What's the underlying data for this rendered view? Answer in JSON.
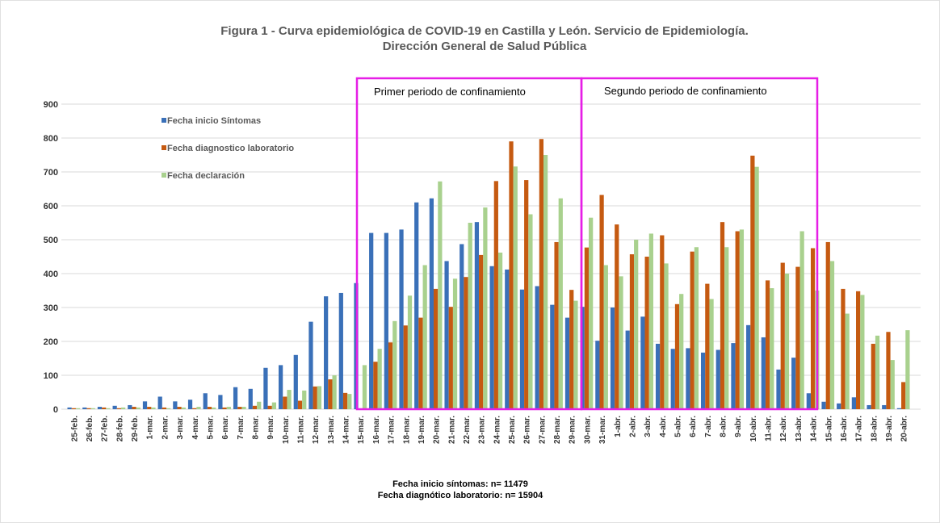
{
  "chart_data": {
    "type": "bar",
    "title": "Figura 1 - Curva epidemiológica de COVID-19 en Castilla y León.  Servicio de Epidemiología.",
    "subtitle": "Dirección General de Salud Pública",
    "annotations": [
      "Primer periodo de confinamiento",
      "Segundo periodo de confinamiento"
    ],
    "notes": [
      "Fecha inicio síntomas: n= 11479",
      "Fecha diagnótico laboratorio: n= 15904"
    ],
    "categories": [
      "25-feb.",
      "26-feb.",
      "27-feb.",
      "28-feb.",
      "29-feb.",
      "1-mar.",
      "2-mar.",
      "3-mar.",
      "4-mar.",
      "5-mar.",
      "6-mar.",
      "7-mar.",
      "8-mar.",
      "9-mar.",
      "10-mar.",
      "11-mar.",
      "12-mar.",
      "13-mar.",
      "14-mar.",
      "15-mar.",
      "16-mar.",
      "17-mar.",
      "18-mar.",
      "19-mar.",
      "20-mar.",
      "21-mar.",
      "22-mar.",
      "23-mar.",
      "24-mar.",
      "25-mar.",
      "26-mar.",
      "27-mar.",
      "28-mar.",
      "29-mar.",
      "30-mar.",
      "31-mar.",
      "1-abr.",
      "2-abr.",
      "3-abr.",
      "4-abr.",
      "5-abr.",
      "6-abr.",
      "7-abr.",
      "8-abr.",
      "9-abr.",
      "10-abr.",
      "11-abr.",
      "12-abr.",
      "13-abr.",
      "14-abr.",
      "15-abr.",
      "16-abr.",
      "17-abr.",
      "18-abr.",
      "19-abr.",
      "20-abr."
    ],
    "series": [
      {
        "name": "Fecha inicio Síntomas",
        "color": "#3a70b8",
        "values": [
          5,
          5,
          7,
          10,
          12,
          23,
          37,
          23,
          28,
          47,
          42,
          65,
          60,
          122,
          130,
          160,
          258,
          333,
          343,
          372,
          520,
          520,
          530,
          610,
          622,
          437,
          487,
          552,
          422,
          412,
          353,
          363,
          308,
          270,
          302,
          202,
          300,
          232,
          273,
          193,
          178,
          180,
          167,
          175,
          195,
          248,
          212,
          117,
          152,
          47,
          22,
          17,
          35,
          12,
          12,
          3
        ]
      },
      {
        "name": "Fecha diagnostico laboratorio",
        "color": "#c55a11",
        "values": [
          3,
          3,
          5,
          3,
          7,
          7,
          5,
          7,
          3,
          7,
          5,
          7,
          10,
          10,
          37,
          25,
          67,
          88,
          48,
          0,
          140,
          197,
          247,
          270,
          355,
          302,
          390,
          455,
          673,
          790,
          676,
          797,
          493,
          352,
          477,
          632,
          545,
          457,
          450,
          513,
          310,
          465,
          370,
          552,
          525,
          748,
          380,
          432,
          420,
          475,
          493,
          355,
          348,
          193,
          228,
          80
        ]
      },
      {
        "name": "Fecha declaración",
        "color": "#a9d18e",
        "values": [
          3,
          3,
          3,
          5,
          5,
          5,
          3,
          5,
          7,
          5,
          7,
          7,
          22,
          20,
          57,
          55,
          68,
          100,
          45,
          130,
          178,
          260,
          335,
          425,
          672,
          385,
          550,
          595,
          462,
          716,
          575,
          750,
          622,
          320,
          565,
          425,
          392,
          500,
          518,
          430,
          340,
          478,
          325,
          478,
          530,
          715,
          357,
          400,
          525,
          350,
          437,
          282,
          337,
          217,
          145,
          233
        ]
      }
    ],
    "ylim": [
      0,
      900
    ],
    "yticks": [
      0,
      100,
      200,
      300,
      400,
      500,
      600,
      700,
      800,
      900
    ],
    "grid": true
  }
}
